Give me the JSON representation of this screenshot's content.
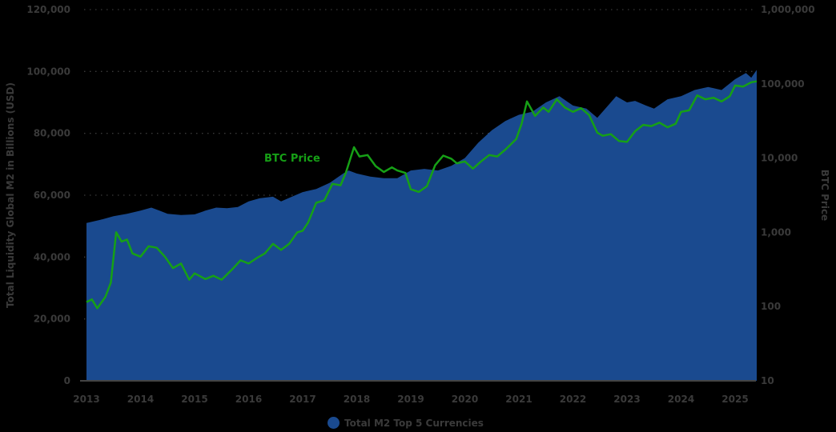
{
  "chart_data": {
    "type": "area+line",
    "title": "",
    "xlabel": "",
    "ylabel": "Total Liquidity Global M2 in Billions (USD)",
    "y2label": "BTC Price",
    "x_ticks": [
      "2013",
      "2014",
      "2015",
      "2016",
      "2017",
      "2018",
      "2019",
      "2020",
      "2021",
      "2022",
      "2023",
      "2024",
      "2025"
    ],
    "y_ticks": [
      "0",
      "20,000",
      "40,000",
      "60,000",
      "80,000",
      "100,000",
      "120,000"
    ],
    "y2_ticks": [
      "10",
      "100",
      "1,000",
      "10,000",
      "100,000",
      "1,000,000"
    ],
    "ylim": [
      0,
      120000
    ],
    "y2lim": [
      10,
      1000000
    ],
    "y2_scale": "log",
    "grid": "horizontal dotted",
    "legend": {
      "position": "bottom",
      "entries": [
        "Total M2 Top 5 Currencies"
      ]
    },
    "annotations": [
      {
        "text": "BTC Price",
        "x": 2016.7,
        "y2": 10000
      }
    ],
    "colors": {
      "area": "#1a4a8f",
      "line": "#16a016",
      "background": "#000000",
      "text": "#3a3a3a"
    },
    "series": [
      {
        "name": "Total M2 Top 5 Currencies",
        "axis": "left",
        "kind": "area",
        "x": [
          2013.0,
          2013.25,
          2013.5,
          2013.75,
          2014.0,
          2014.2,
          2014.35,
          2014.5,
          2014.75,
          2015.0,
          2015.2,
          2015.4,
          2015.6,
          2015.8,
          2016.0,
          2016.2,
          2016.45,
          2016.6,
          2016.8,
          2017.0,
          2017.25,
          2017.5,
          2017.75,
          2017.85,
          2018.0,
          2018.25,
          2018.5,
          2018.75,
          2019.0,
          2019.25,
          2019.5,
          2019.75,
          2020.0,
          2020.25,
          2020.5,
          2020.75,
          2021.0,
          2021.25,
          2021.5,
          2021.75,
          2022.0,
          2022.25,
          2022.45,
          2022.6,
          2022.8,
          2023.0,
          2023.15,
          2023.35,
          2023.5,
          2023.75,
          2024.0,
          2024.25,
          2024.5,
          2024.75,
          2025.0,
          2025.2,
          2025.3,
          2025.4
        ],
        "values": [
          51000,
          52000,
          53200,
          54000,
          55000,
          56000,
          55000,
          54000,
          53600,
          53800,
          55000,
          56000,
          55800,
          56200,
          58000,
          59000,
          59500,
          58000,
          59500,
          61000,
          62000,
          64000,
          67000,
          68000,
          67000,
          66000,
          65500,
          65500,
          68000,
          68500,
          68000,
          69500,
          72000,
          77000,
          81000,
          84000,
          86000,
          87000,
          90000,
          92000,
          89000,
          88000,
          85000,
          88000,
          92000,
          90000,
          90500,
          89000,
          88000,
          91000,
          92000,
          94000,
          95000,
          94000,
          97500,
          99500,
          98000,
          100500
        ]
      },
      {
        "name": "BTC Price",
        "axis": "right",
        "kind": "line",
        "x": [
          2013.0,
          2013.1,
          2013.2,
          2013.35,
          2013.45,
          2013.55,
          2013.65,
          2013.75,
          2013.85,
          2014.0,
          2014.15,
          2014.3,
          2014.45,
          2014.6,
          2014.75,
          2014.9,
          2015.0,
          2015.2,
          2015.35,
          2015.5,
          2015.7,
          2015.85,
          2016.0,
          2016.15,
          2016.3,
          2016.45,
          2016.6,
          2016.75,
          2016.9,
          2017.0,
          2017.1,
          2017.25,
          2017.4,
          2017.55,
          2017.7,
          2017.8,
          2017.95,
          2018.05,
          2018.2,
          2018.35,
          2018.5,
          2018.65,
          2018.75,
          2018.9,
          2019.0,
          2019.15,
          2019.3,
          2019.45,
          2019.6,
          2019.75,
          2019.85,
          2020.0,
          2020.15,
          2020.3,
          2020.45,
          2020.6,
          2020.75,
          2020.95,
          2021.05,
          2021.15,
          2021.3,
          2021.45,
          2021.55,
          2021.7,
          2021.85,
          2022.0,
          2022.15,
          2022.3,
          2022.45,
          2022.55,
          2022.7,
          2022.85,
          2023.0,
          2023.15,
          2023.3,
          2023.45,
          2023.6,
          2023.75,
          2023.9,
          2024.0,
          2024.15,
          2024.3,
          2024.45,
          2024.6,
          2024.75,
          2024.9,
          2025.0,
          2025.15,
          2025.3,
          2025.4
        ],
        "values": [
          115,
          125,
          95,
          135,
          210,
          1000,
          750,
          800,
          520,
          470,
          650,
          620,
          470,
          330,
          380,
          230,
          280,
          235,
          260,
          230,
          320,
          420,
          380,
          450,
          520,
          700,
          580,
          700,
          1000,
          1050,
          1350,
          2500,
          2700,
          4500,
          4300,
          6400,
          14000,
          10500,
          11000,
          7800,
          6500,
          7500,
          6800,
          6300,
          3800,
          3500,
          4200,
          8000,
          10800,
          9800,
          8500,
          9000,
          7200,
          9000,
          11000,
          10500,
          13000,
          18000,
          29000,
          58000,
          37000,
          48000,
          42000,
          62000,
          48000,
          42000,
          47000,
          38000,
          22000,
          20000,
          21000,
          17000,
          16500,
          23000,
          28000,
          27000,
          30000,
          26000,
          29000,
          42000,
          44000,
          70000,
          62000,
          65000,
          58000,
          68000,
          95000,
          92000,
          105000,
          108000
        ]
      }
    ]
  },
  "legend_label": "Total M2 Top 5 Currencies"
}
